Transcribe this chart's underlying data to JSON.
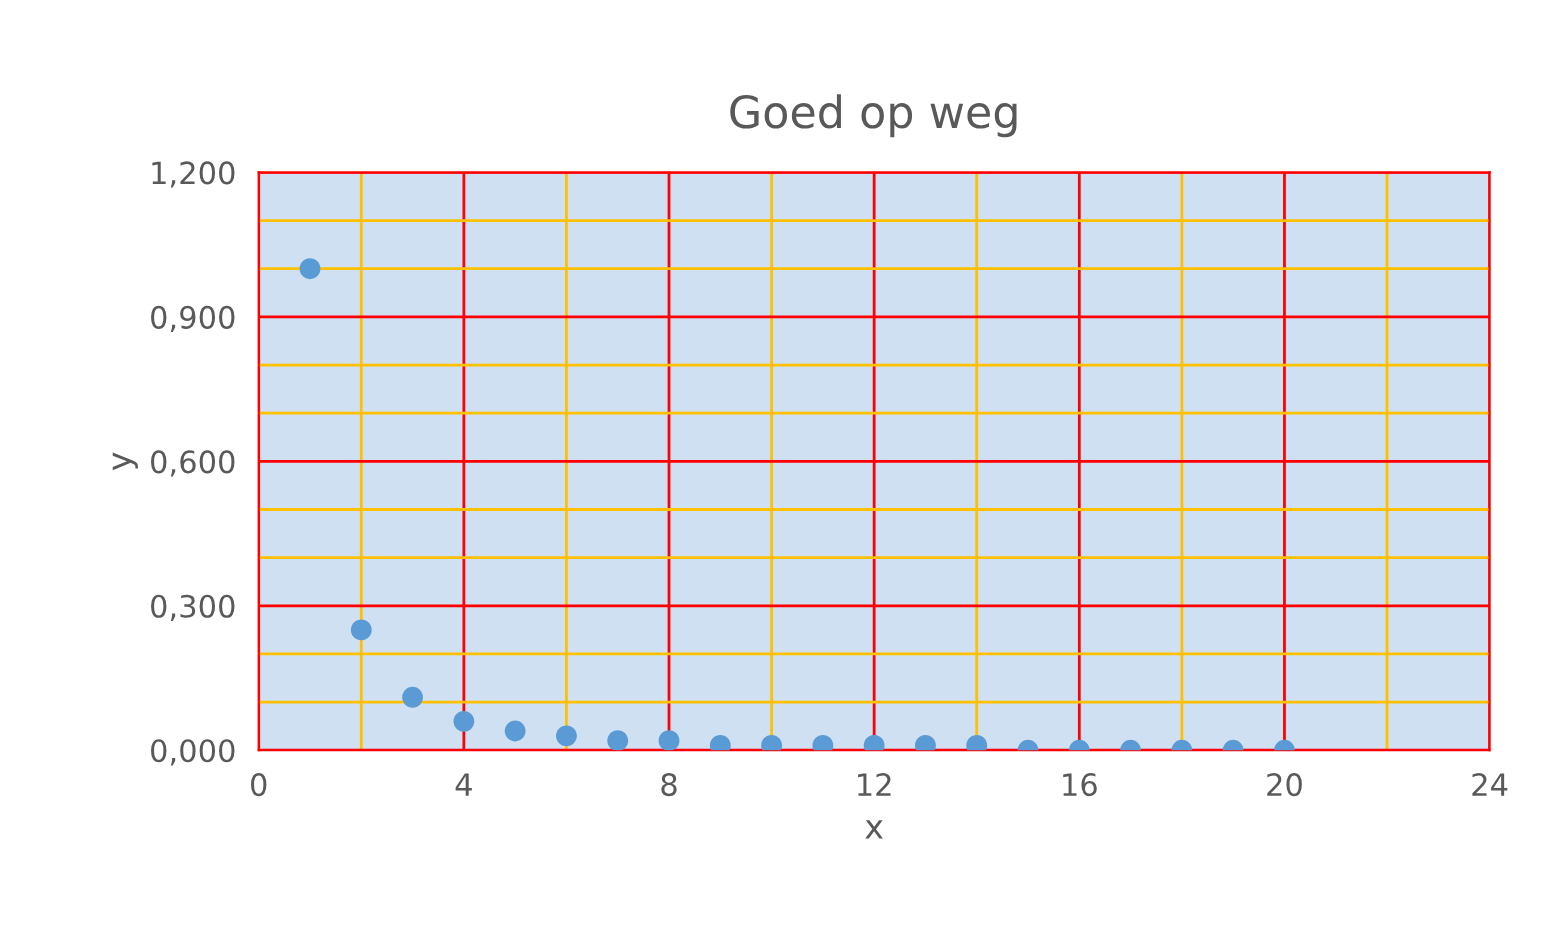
{
  "chart_data": {
    "type": "scatter",
    "title": "Goed op weg",
    "xlabel": "x",
    "ylabel": "y",
    "x": [
      1,
      2,
      3,
      4,
      5,
      6,
      7,
      8,
      9,
      10,
      11,
      12,
      13,
      14,
      15,
      16,
      17,
      18,
      19,
      20
    ],
    "series": [
      {
        "color": "#5b9bd5",
        "values": [
          1.0,
          0.25,
          0.11,
          0.06,
          0.04,
          0.03,
          0.02,
          0.02,
          0.01,
          0.01,
          0.01,
          0.01,
          0.01,
          0.01,
          0.0,
          0.0,
          0.0,
          0.0,
          0.0,
          0.0
        ]
      }
    ],
    "xlim": [
      0,
      24
    ],
    "xticks": [
      0,
      {
        "value": 2,
        "label": null
      },
      4,
      {
        "value": 6,
        "label": null
      },
      8,
      {
        "value": 10,
        "label": null
      },
      12,
      {
        "value": 14,
        "label": null
      },
      16,
      {
        "value": 18,
        "label": null
      },
      20,
      {
        "value": 22,
        "label": null
      },
      24
    ],
    "ylim": [
      0,
      1.2
    ],
    "yticks": [
      {
        "value": 0,
        "label": "0,000"
      },
      {
        "value": 0.1,
        "label": null
      },
      {
        "value": 0.2,
        "label": null
      },
      {
        "value": 0.3,
        "label": "0,300"
      },
      {
        "value": 0.4,
        "label": null
      },
      {
        "value": 0.5,
        "label": null
      },
      {
        "value": 0.6,
        "label": "0,600"
      },
      {
        "value": 0.7,
        "label": null
      },
      {
        "value": 0.8,
        "label": null
      },
      {
        "value": 0.9,
        "label": "0,900"
      },
      {
        "value": 1.0,
        "label": null
      },
      {
        "value": 1.1,
        "label": null
      },
      {
        "value": 1.2,
        "label": "1,200"
      }
    ],
    "grid": true,
    "marker": "circle",
    "legend": false
  }
}
